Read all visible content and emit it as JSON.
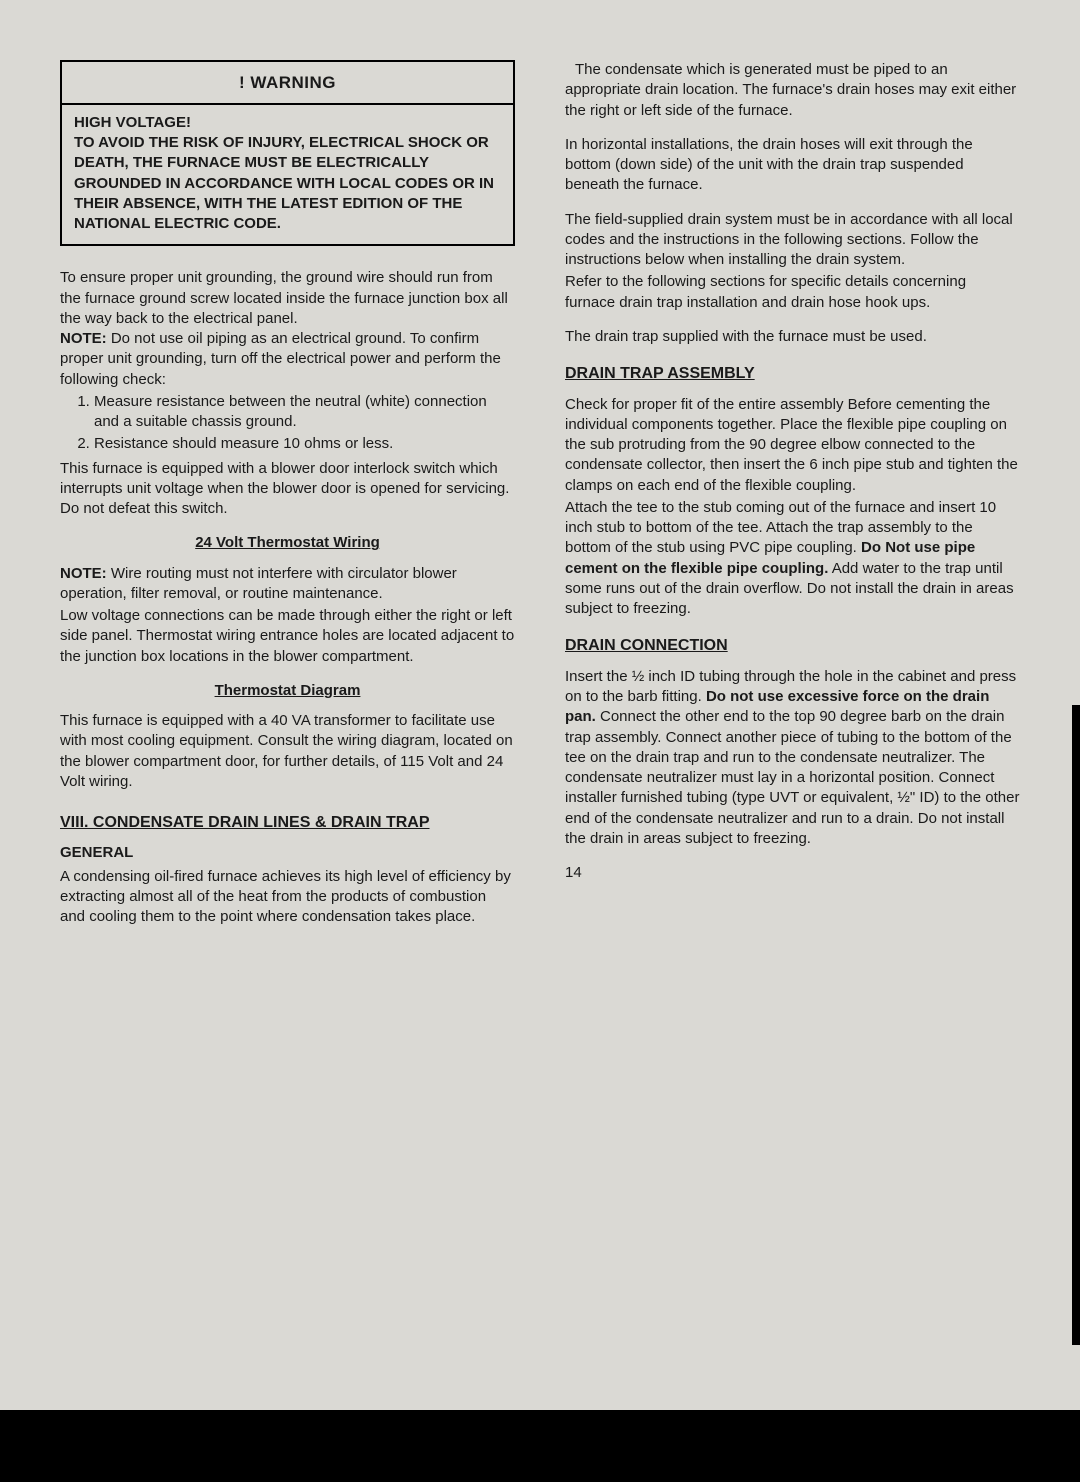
{
  "warning": {
    "title": "! WARNING",
    "line1": "HIGH VOLTAGE!",
    "body": "TO AVOID THE RISK OF INJURY, ELECTRICAL SHOCK OR DEATH, THE FURNACE MUST BE ELECTRICALLY GROUNDED IN ACCORDANCE WITH LOCAL CODES OR IN THEIR ABSENCE, WITH THE LATEST EDITION OF THE NATIONAL ELECTRIC CODE."
  },
  "left": {
    "p1a": "To ensure proper unit grounding, the ground wire should run from the furnace ground screw located inside the furnace junction box all the way back to the electrical panel.",
    "noteLabel": "NOTE:",
    "p1b": " Do not use oil piping as an electrical ground. To confirm proper unit grounding, turn off the electrical power and perform the following check:",
    "li1": "Measure resistance between the neutral (white) connection and a suitable chassis ground.",
    "li2": "Resistance should measure 10 ohms or less.",
    "p2": "This furnace is equipped with a blower door interlock switch which interrupts unit voltage when the blower door is opened for servicing. Do not defeat this switch.",
    "h_thermo": "24 Volt Thermostat Wiring",
    "noteLabel2": "NOTE:",
    "p3a": " Wire routing must not interfere with circulator blower operation, filter removal, or routine maintenance.",
    "p3b": "Low voltage connections can be made through either the right or left side panel. Thermostat wiring entrance holes are located adjacent to the junction box locations in the blower compartment.",
    "h_diagram": "Thermostat Diagram",
    "p4": "This furnace is equipped with a 40 VA transformer to facilitate use with most cooling equipment. Consult the wiring diagram, located on the blower compartment door, for further details, of 115 Volt and 24 Volt wiring.",
    "h_viii": "VIII.  CONDENSATE DRAIN LINES & DRAIN TRAP",
    "h_general": "GENERAL",
    "p5": "A condensing oil-fired furnace achieves its high level of efficiency by extracting almost all of the heat from the products of combustion and cooling them to the point where condensation takes place."
  },
  "right": {
    "p1": "The condensate which is generated must be piped to an appropriate drain location. The furnace's drain hoses may exit either the right or left side of the furnace.",
    "p2": "In horizontal installations, the drain hoses will exit through the bottom (down side) of the unit with the drain trap suspended beneath the furnace.",
    "p3": "The field-supplied drain system must be in accordance with all local codes and the instructions in the following sections. Follow the instructions below when installing the drain system.",
    "p3b": "Refer to the following sections for specific details concerning furnace drain trap installation and drain hose hook ups.",
    "p4": "The drain trap supplied with the furnace must be used.",
    "h_assembly": "DRAIN TRAP ASSEMBLY",
    "p5": "Check for proper fit of the entire assembly Before cementing the individual components together. Place the flexible pipe coupling on the sub protruding from the 90 degree elbow connected to the condensate collector, then insert the 6 inch pipe stub and tighten the clamps on each end of the flexible coupling.",
    "p5b": "Attach the tee to the stub coming out of the furnace and insert 10 inch stub to bottom of the tee. Attach the trap assembly to the bottom of the stub using PVC pipe coupling.",
    "p5bold": "Do Not use pipe cement on the flexible pipe coupling.",
    "p5c": " Add water to the trap until some runs out of the drain overflow. Do not install the drain in areas subject to freezing.",
    "h_conn": "DRAIN CONNECTION",
    "p6a": "Insert the ½ inch ID tubing through the hole in the cabinet and press on to the barb fitting. ",
    "p6bold": "Do not use excessive force on the drain pan.",
    "p6b": " Connect the other end to the top 90 degree barb on the drain trap assembly. Connect another piece of tubing to the bottom of the tee on the drain trap and run to the condensate neutralizer. The condensate neutralizer must lay in a horizontal position. Connect installer furnished tubing (type UVT or equivalent, ½\" ID) to the other end of the condensate neutralizer and run to a drain. Do not install the drain in areas subject to freezing.",
    "pagenum": "14"
  }
}
